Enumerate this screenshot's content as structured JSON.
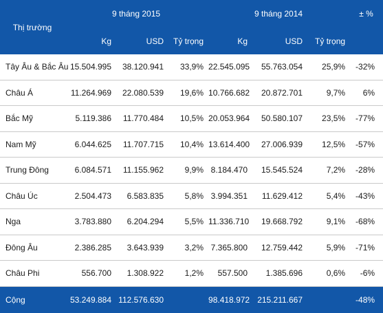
{
  "header": {
    "market_label": "Thị trường",
    "period_2015": "9 tháng 2015",
    "period_2014": "9 tháng 2014",
    "change_label": "± %",
    "kg_label": "Kg",
    "usd_label": "USD",
    "share_label": "Tỷ trọng"
  },
  "rows": [
    {
      "market": "Tây Âu & Bắc Âu",
      "kg_2015": "15.504.995",
      "usd_2015": "38.120.941",
      "share_2015": "33,9%",
      "kg_2014": "22.545.095",
      "usd_2014": "55.763.054",
      "share_2014": "25,9%",
      "change": "-32%"
    },
    {
      "market": "Châu Á",
      "kg_2015": "11.264.969",
      "usd_2015": "22.080.539",
      "share_2015": "19,6%",
      "kg_2014": "10.766.682",
      "usd_2014": "20.872.701",
      "share_2014": "9,7%",
      "change": "6%"
    },
    {
      "market": "Bắc Mỹ",
      "kg_2015": "5.119.386",
      "usd_2015": "11.770.484",
      "share_2015": "10,5%",
      "kg_2014": "20.053.964",
      "usd_2014": "50.580.107",
      "share_2014": "23,5%",
      "change": "-77%"
    },
    {
      "market": "Nam Mỹ",
      "kg_2015": "6.044.625",
      "usd_2015": "11.707.715",
      "share_2015": "10,4%",
      "kg_2014": "13.614.400",
      "usd_2014": "27.006.939",
      "share_2014": "12,5%",
      "change": "-57%"
    },
    {
      "market": "Trung Đông",
      "kg_2015": "6.084.571",
      "usd_2015": "11.155.962",
      "share_2015": "9,9%",
      "kg_2014": "8.184.470",
      "usd_2014": "15.545.524",
      "share_2014": "7,2%",
      "change": "-28%"
    },
    {
      "market": "Châu Úc",
      "kg_2015": "2.504.473",
      "usd_2015": "6.583.835",
      "share_2015": "5,8%",
      "kg_2014": "3.994.351",
      "usd_2014": "11.629.412",
      "share_2014": "5,4%",
      "change": "-43%"
    },
    {
      "market": "Nga",
      "kg_2015": "3.783.880",
      "usd_2015": "6.204.294",
      "share_2015": "5,5%",
      "kg_2014": "11.336.710",
      "usd_2014": "19.668.792",
      "share_2014": "9,1%",
      "change": "-68%"
    },
    {
      "market": "Đông Âu",
      "kg_2015": "2.386.285",
      "usd_2015": "3.643.939",
      "share_2015": "3,2%",
      "kg_2014": "7.365.800",
      "usd_2014": "12.759.442",
      "share_2014": "5,9%",
      "change": "-71%"
    },
    {
      "market": "Châu Phi",
      "kg_2015": "556.700",
      "usd_2015": "1.308.922",
      "share_2015": "1,2%",
      "kg_2014": "557.500",
      "usd_2014": "1.385.696",
      "share_2014": "0,6%",
      "change": "-6%"
    }
  ],
  "total": {
    "label": "Cộng",
    "kg_2015": "53.249.884",
    "usd_2015": "112.576.630",
    "kg_2014": "98.418.972",
    "usd_2014": "215.211.667",
    "change": "-48%"
  }
}
